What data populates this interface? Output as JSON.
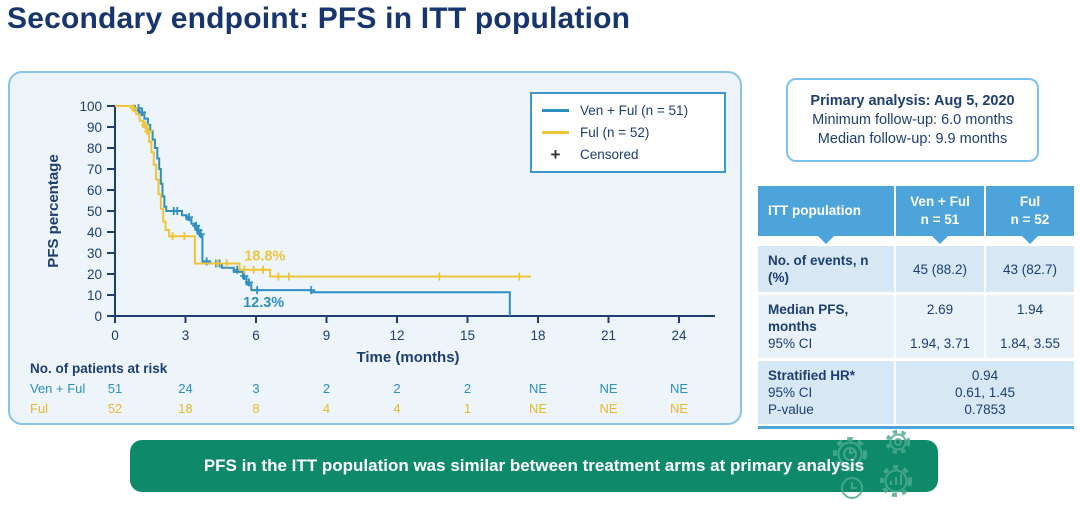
{
  "title": "Secondary endpoint: PFS in ITT population",
  "colors": {
    "navy": "#1c3e70",
    "title_navy": "#17356e",
    "ven_blue": "#2f8fc0",
    "ful_yellow": "#eec43b",
    "table_header_blue": "#4da4da",
    "panel_border_blue": "#8ac2e8",
    "banner_green": "#0e8a6a"
  },
  "icons": {
    "banner_decoration": "analytics-gears-icon",
    "censor_mark": "plus-icon"
  },
  "chart_data": {
    "type": "line",
    "subtype": "kaplan-meier-step",
    "xlabel": "Time (months)",
    "ylabel": "PFS percentage",
    "xlim": [
      0,
      25.5
    ],
    "ylim": [
      0,
      100
    ],
    "xticks": [
      0,
      3,
      6,
      9,
      12,
      15,
      18,
      21,
      24
    ],
    "yticks": [
      0,
      10,
      20,
      30,
      40,
      50,
      60,
      70,
      80,
      90,
      100
    ],
    "grid": false,
    "legend_position": "top-right",
    "censored_label": "Censored",
    "censored_symbol": "+",
    "series": [
      {
        "name": "Ven + Ful (n = 51)",
        "color": "#2f8fc0",
        "steps": [
          [
            0,
            100
          ],
          [
            0.85,
            100
          ],
          [
            0.85,
            98
          ],
          [
            1.05,
            98
          ],
          [
            1.05,
            96
          ],
          [
            1.25,
            96
          ],
          [
            1.25,
            94
          ],
          [
            1.4,
            94
          ],
          [
            1.4,
            91
          ],
          [
            1.5,
            91
          ],
          [
            1.5,
            88
          ],
          [
            1.6,
            88
          ],
          [
            1.6,
            84
          ],
          [
            1.7,
            84
          ],
          [
            1.7,
            80
          ],
          [
            1.8,
            80
          ],
          [
            1.8,
            75
          ],
          [
            1.88,
            75
          ],
          [
            1.88,
            70
          ],
          [
            1.95,
            70
          ],
          [
            1.95,
            63
          ],
          [
            2.02,
            63
          ],
          [
            2.02,
            57
          ],
          [
            2.1,
            57
          ],
          [
            2.1,
            52
          ],
          [
            2.18,
            52
          ],
          [
            2.18,
            50
          ],
          [
            2.85,
            50
          ],
          [
            2.85,
            48
          ],
          [
            3.05,
            48
          ],
          [
            3.05,
            46
          ],
          [
            3.25,
            46
          ],
          [
            3.25,
            44
          ],
          [
            3.4,
            44
          ],
          [
            3.4,
            42
          ],
          [
            3.5,
            42
          ],
          [
            3.5,
            40
          ],
          [
            3.6,
            40
          ],
          [
            3.6,
            38
          ],
          [
            3.72,
            38
          ],
          [
            3.72,
            26
          ],
          [
            4.05,
            26
          ],
          [
            4.05,
            25
          ],
          [
            4.55,
            25
          ],
          [
            4.55,
            23
          ],
          [
            5.05,
            23
          ],
          [
            5.05,
            21
          ],
          [
            5.45,
            21
          ],
          [
            5.45,
            18
          ],
          [
            5.6,
            18
          ],
          [
            5.6,
            15
          ],
          [
            5.8,
            15
          ],
          [
            5.8,
            12.3
          ],
          [
            8.35,
            12.3
          ],
          [
            8.35,
            11.3
          ],
          [
            16.8,
            11.3
          ],
          [
            16.8,
            0
          ]
        ],
        "censors": [
          [
            1.0,
            99
          ],
          [
            1.15,
            97
          ],
          [
            2.5,
            50
          ],
          [
            2.65,
            50
          ],
          [
            3.15,
            47
          ],
          [
            3.45,
            43
          ],
          [
            3.55,
            41
          ],
          [
            3.65,
            39
          ],
          [
            3.9,
            26
          ],
          [
            4.3,
            25
          ],
          [
            4.45,
            25
          ],
          [
            5.2,
            22
          ],
          [
            5.5,
            19
          ],
          [
            5.7,
            16
          ],
          [
            6.05,
            12.3
          ],
          [
            8.35,
            12.3
          ]
        ],
        "annotation": {
          "text": "12.3%",
          "x": 5.45,
          "y": 4.2
        }
      },
      {
        "name": "Ful (n = 52)",
        "color": "#eec43b",
        "steps": [
          [
            0,
            100
          ],
          [
            0.75,
            100
          ],
          [
            0.75,
            98
          ],
          [
            0.9,
            98
          ],
          [
            0.9,
            96
          ],
          [
            1.05,
            96
          ],
          [
            1.05,
            93
          ],
          [
            1.2,
            93
          ],
          [
            1.2,
            90
          ],
          [
            1.35,
            90
          ],
          [
            1.35,
            87
          ],
          [
            1.45,
            87
          ],
          [
            1.45,
            83
          ],
          [
            1.55,
            83
          ],
          [
            1.55,
            78
          ],
          [
            1.65,
            78
          ],
          [
            1.65,
            72
          ],
          [
            1.75,
            72
          ],
          [
            1.75,
            65
          ],
          [
            1.85,
            65
          ],
          [
            1.85,
            58
          ],
          [
            1.95,
            58
          ],
          [
            1.95,
            51
          ],
          [
            2.05,
            51
          ],
          [
            2.05,
            45
          ],
          [
            2.15,
            45
          ],
          [
            2.15,
            41
          ],
          [
            2.3,
            41
          ],
          [
            2.3,
            38
          ],
          [
            3.4,
            38
          ],
          [
            3.4,
            25
          ],
          [
            5.3,
            25
          ],
          [
            5.3,
            22
          ],
          [
            6.6,
            22
          ],
          [
            6.6,
            18.8
          ],
          [
            17.7,
            18.8
          ]
        ],
        "censors": [
          [
            0.8,
            99
          ],
          [
            1.28,
            91
          ],
          [
            1.42,
            88
          ],
          [
            2.45,
            38
          ],
          [
            2.95,
            38
          ],
          [
            4.35,
            25
          ],
          [
            4.75,
            25
          ],
          [
            5.5,
            22
          ],
          [
            5.9,
            22
          ],
          [
            6.3,
            22
          ],
          [
            6.95,
            18.8
          ],
          [
            7.4,
            18.8
          ],
          [
            13.8,
            18.8
          ],
          [
            17.2,
            18.8
          ]
        ],
        "annotation": {
          "text": "18.8%",
          "x": 5.5,
          "y": 26.5
        }
      }
    ],
    "at_risk": {
      "title": "No. of patients at risk",
      "rows": [
        {
          "label": "Ven + Ful",
          "color": "#2f8fc0",
          "values": [
            "51",
            "24",
            "3",
            "2",
            "2",
            "2",
            "NE",
            "NE",
            "NE"
          ]
        },
        {
          "label": "Ful",
          "color": "#e6b92e",
          "values": [
            "52",
            "18",
            "8",
            "4",
            "4",
            "1",
            "NE",
            "NE",
            "NE"
          ]
        }
      ]
    }
  },
  "legend": {
    "items": [
      {
        "label": "Ven + Ful (n = 51)",
        "swatch": "line",
        "color": "#2f8fc0"
      },
      {
        "label": "Ful (n = 52)",
        "swatch": "line",
        "color": "#eec43b"
      },
      {
        "label": "Censored",
        "swatch": "plus",
        "symbol": "+"
      }
    ]
  },
  "primary_analysis": {
    "line1": "Primary analysis: Aug 5, 2020",
    "line2": "Minimum follow-up: 6.0 months",
    "line3": "Median follow-up: 9.9 months"
  },
  "results_table": {
    "header": {
      "col0": "ITT population",
      "col1_line1": "Ven + Ful",
      "col1_line2": "n = 51",
      "col2_line1": "Ful",
      "col2_line2": "n = 52"
    },
    "row1": {
      "label": "No. of events, n (%)",
      "v1": "45 (88.2)",
      "v2": "43 (82.7)"
    },
    "row2": {
      "label_line1": "Median PFS,",
      "label_line2": "months",
      "label_line3": "95% CI",
      "v1_top": "2.69",
      "v2_top": "1.94",
      "v1_bottom": "1.94, 3.71",
      "v2_bottom": "1.84, 3.55"
    },
    "row3": {
      "label_line1": "Stratified HR*",
      "label_line2": "95% CI",
      "label_line3": "P-value",
      "v_line1": "0.94",
      "v_line2": "0.61, 1.45",
      "v_line3": "0.7853"
    }
  },
  "banner": {
    "text": "PFS in the ITT population was similar between treatment arms at primary analysis"
  }
}
